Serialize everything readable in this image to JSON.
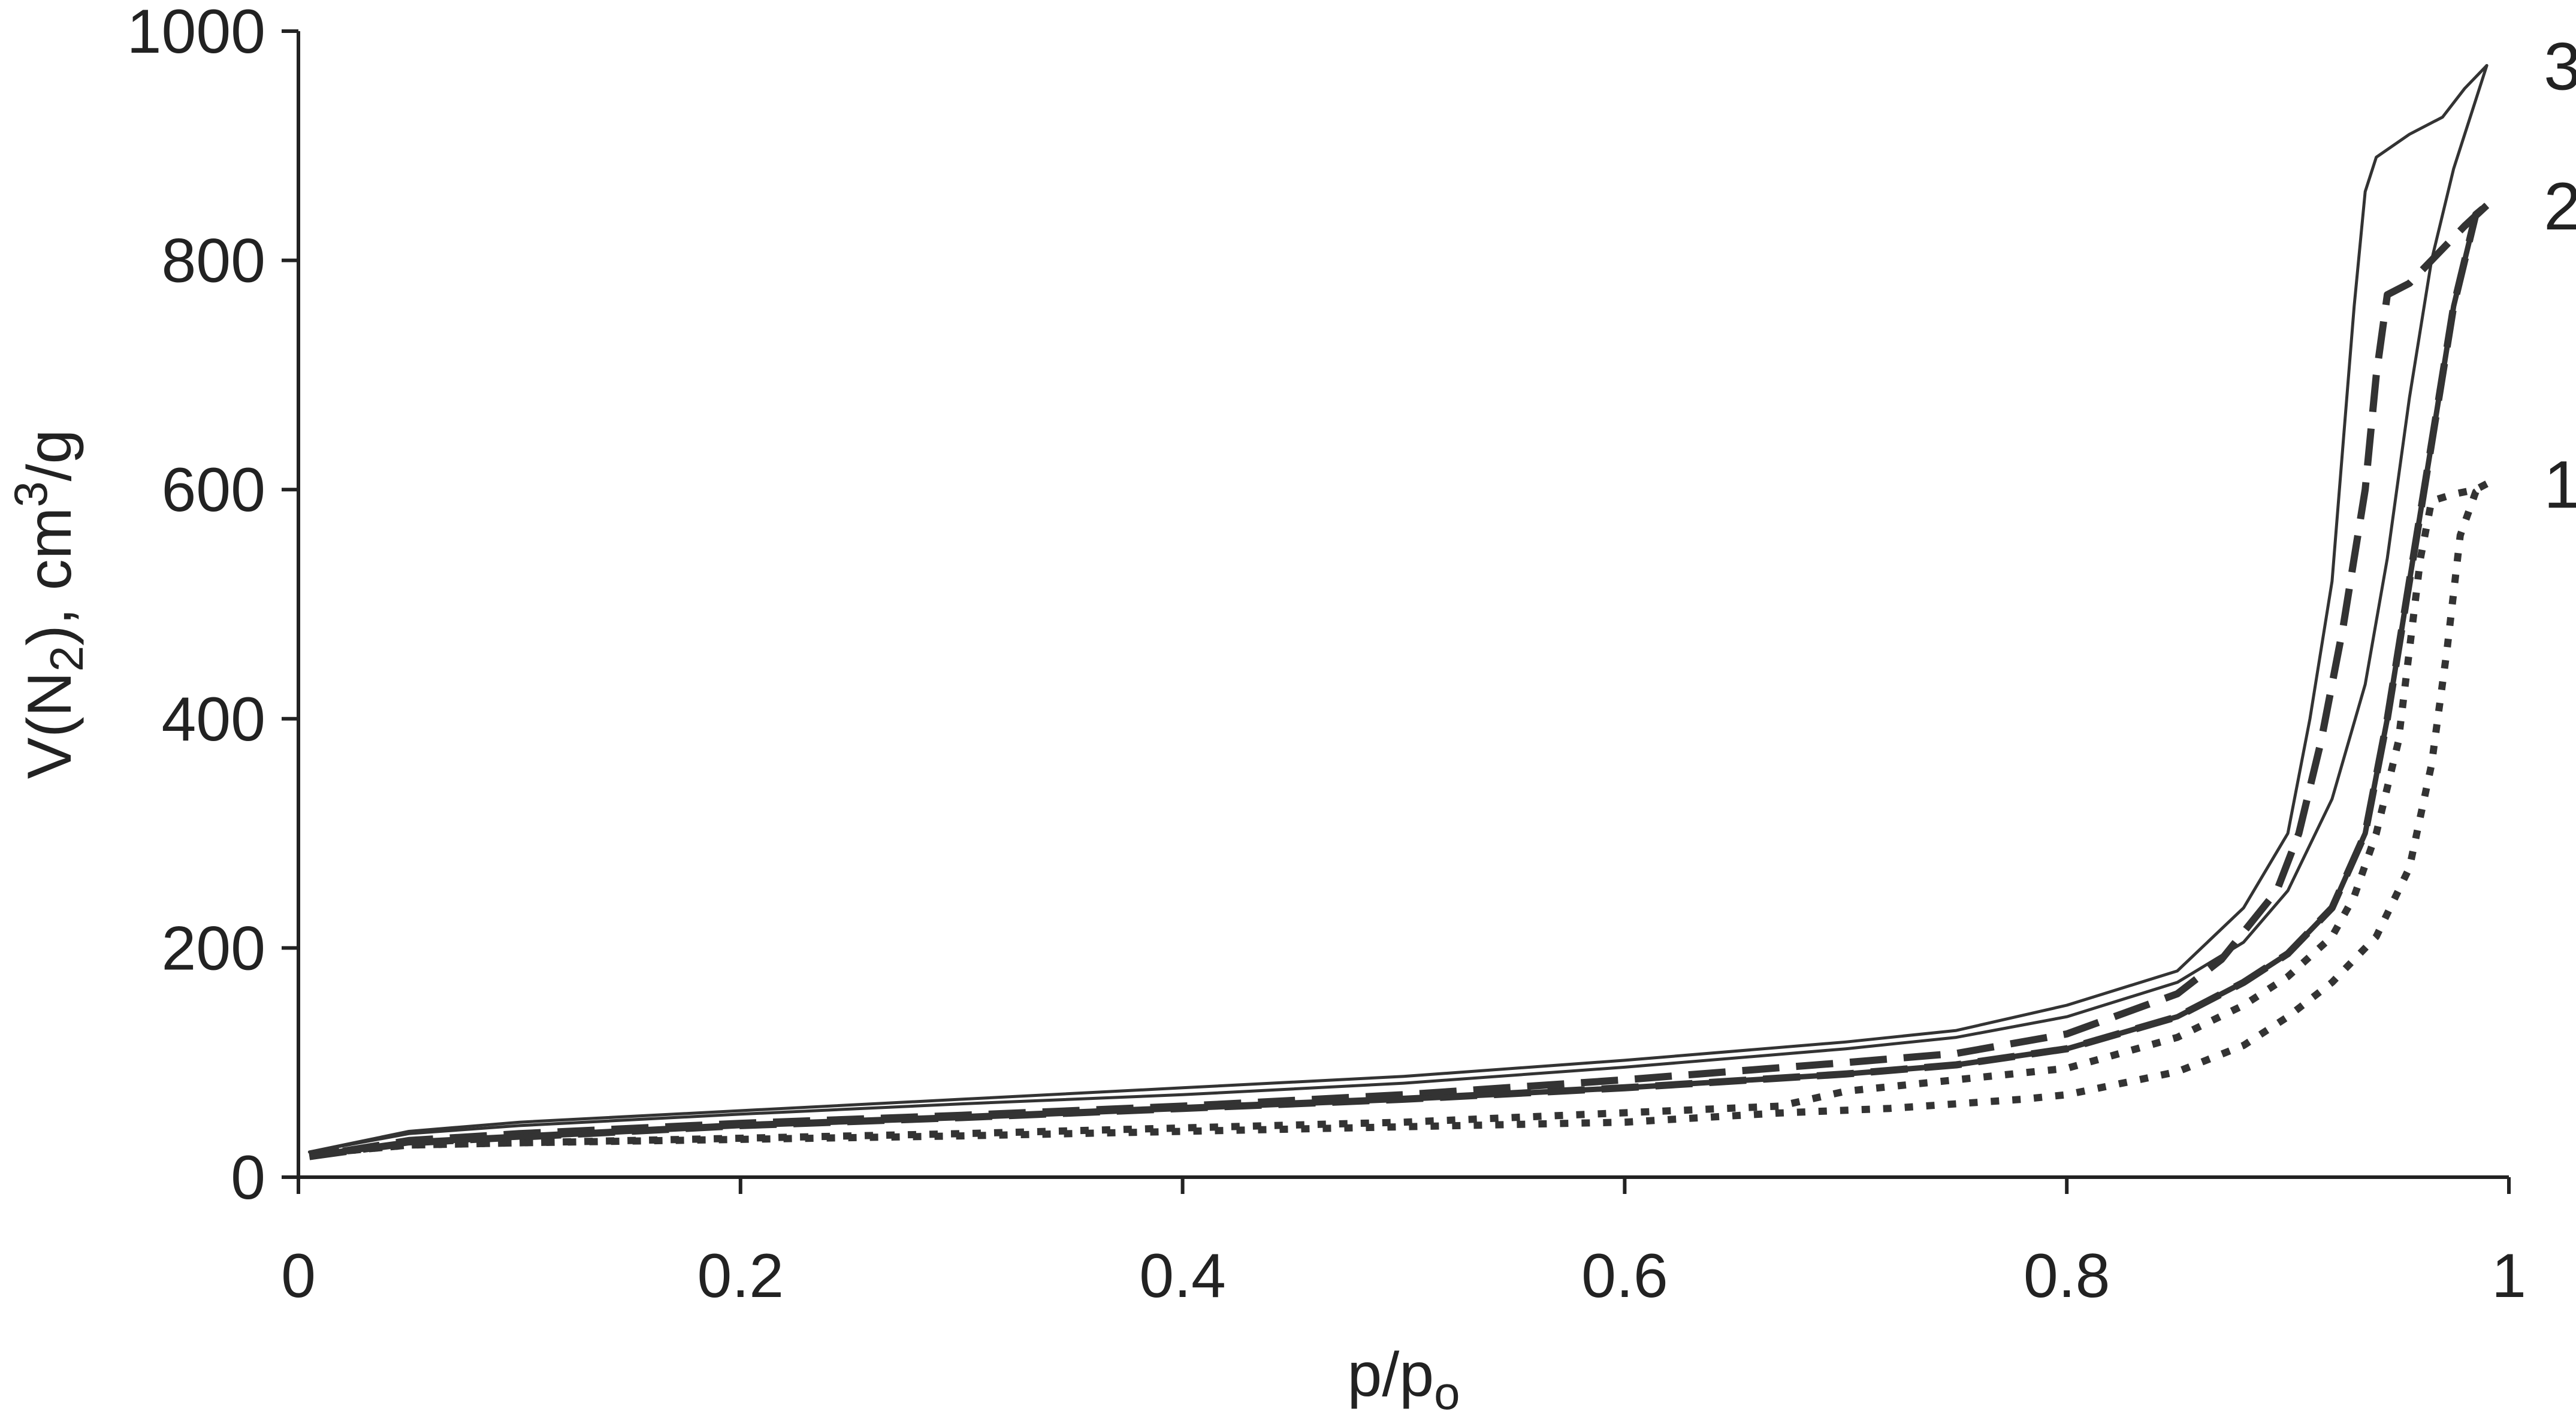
{
  "chart_data": {
    "type": "line",
    "title": "",
    "xlabel": {
      "base": "p/p",
      "sub": "o"
    },
    "ylabel": {
      "part1": "V(N",
      "sub": "2",
      "part2": "), cm",
      "sup": "3",
      "part3": "/g"
    },
    "xlim": [
      0,
      1
    ],
    "ylim": [
      0,
      1000
    ],
    "xticks": [
      0,
      0.2,
      0.4,
      0.6,
      0.8,
      1
    ],
    "xtick_labels": [
      "0",
      "0.2",
      "0.4",
      "0.6",
      "0.8",
      "1"
    ],
    "yticks": [
      0,
      200,
      400,
      600,
      800,
      1000
    ],
    "ytick_labels": [
      "0",
      "200",
      "400",
      "600",
      "800",
      "1000"
    ],
    "grid": false,
    "series": [
      {
        "name": "1",
        "style": "dotted",
        "adsorption": [
          [
            0.005,
            20
          ],
          [
            0.05,
            28
          ],
          [
            0.1,
            30
          ],
          [
            0.2,
            33
          ],
          [
            0.3,
            36
          ],
          [
            0.4,
            40
          ],
          [
            0.5,
            44
          ],
          [
            0.6,
            48
          ],
          [
            0.67,
            56
          ],
          [
            0.72,
            60
          ],
          [
            0.78,
            68
          ],
          [
            0.8,
            72
          ],
          [
            0.85,
            92
          ],
          [
            0.88,
            115
          ],
          [
            0.9,
            140
          ],
          [
            0.92,
            170
          ],
          [
            0.94,
            210
          ],
          [
            0.955,
            270
          ],
          [
            0.965,
            360
          ],
          [
            0.972,
            460
          ],
          [
            0.978,
            560
          ],
          [
            0.985,
            598
          ],
          [
            0.99,
            605
          ]
        ],
        "desorption": [
          [
            0.99,
            605
          ],
          [
            0.985,
            600
          ],
          [
            0.975,
            596
          ],
          [
            0.965,
            590
          ],
          [
            0.96,
            540
          ],
          [
            0.955,
            460
          ],
          [
            0.95,
            380
          ],
          [
            0.94,
            300
          ],
          [
            0.93,
            245
          ],
          [
            0.92,
            210
          ],
          [
            0.9,
            175
          ],
          [
            0.88,
            150
          ],
          [
            0.85,
            122
          ],
          [
            0.8,
            95
          ],
          [
            0.7,
            75
          ],
          [
            0.67,
            62
          ],
          [
            0.5,
            48
          ],
          [
            0.3,
            38
          ],
          [
            0.2,
            34
          ],
          [
            0.1,
            30
          ],
          [
            0.05,
            28
          ],
          [
            0.005,
            20
          ]
        ]
      },
      {
        "name": "2",
        "style": "dashed",
        "adsorption": [
          [
            0.005,
            18
          ],
          [
            0.05,
            30
          ],
          [
            0.1,
            35
          ],
          [
            0.2,
            45
          ],
          [
            0.3,
            52
          ],
          [
            0.4,
            60
          ],
          [
            0.5,
            68
          ],
          [
            0.6,
            78
          ],
          [
            0.7,
            90
          ],
          [
            0.75,
            98
          ],
          [
            0.8,
            112
          ],
          [
            0.85,
            140
          ],
          [
            0.88,
            170
          ],
          [
            0.9,
            195
          ],
          [
            0.92,
            235
          ],
          [
            0.935,
            300
          ],
          [
            0.945,
            400
          ],
          [
            0.955,
            520
          ],
          [
            0.965,
            640
          ],
          [
            0.975,
            760
          ],
          [
            0.985,
            840
          ],
          [
            0.99,
            848
          ]
        ],
        "desorption": [
          [
            0.99,
            848
          ],
          [
            0.98,
            830
          ],
          [
            0.97,
            810
          ],
          [
            0.955,
            780
          ],
          [
            0.945,
            770
          ],
          [
            0.94,
            700
          ],
          [
            0.935,
            600
          ],
          [
            0.925,
            480
          ],
          [
            0.915,
            380
          ],
          [
            0.905,
            300
          ],
          [
            0.895,
            250
          ],
          [
            0.87,
            190
          ],
          [
            0.85,
            160
          ],
          [
            0.8,
            125
          ],
          [
            0.75,
            108
          ],
          [
            0.7,
            100
          ],
          [
            0.6,
            85
          ],
          [
            0.5,
            72
          ],
          [
            0.4,
            62
          ],
          [
            0.3,
            54
          ],
          [
            0.2,
            47
          ],
          [
            0.1,
            38
          ],
          [
            0.05,
            32
          ],
          [
            0.005,
            18
          ]
        ]
      },
      {
        "name": "3",
        "style": "solid",
        "adsorption": [
          [
            0.005,
            22
          ],
          [
            0.05,
            38
          ],
          [
            0.1,
            45
          ],
          [
            0.2,
            55
          ],
          [
            0.3,
            64
          ],
          [
            0.4,
            72
          ],
          [
            0.5,
            82
          ],
          [
            0.6,
            96
          ],
          [
            0.7,
            112
          ],
          [
            0.75,
            122
          ],
          [
            0.8,
            140
          ],
          [
            0.85,
            170
          ],
          [
            0.88,
            205
          ],
          [
            0.9,
            250
          ],
          [
            0.92,
            330
          ],
          [
            0.935,
            430
          ],
          [
            0.945,
            540
          ],
          [
            0.955,
            680
          ],
          [
            0.965,
            800
          ],
          [
            0.975,
            880
          ],
          [
            0.985,
            940
          ],
          [
            0.99,
            970
          ]
        ],
        "desorption": [
          [
            0.99,
            970
          ],
          [
            0.98,
            950
          ],
          [
            0.97,
            925
          ],
          [
            0.955,
            910
          ],
          [
            0.94,
            890
          ],
          [
            0.935,
            860
          ],
          [
            0.93,
            760
          ],
          [
            0.925,
            640
          ],
          [
            0.92,
            520
          ],
          [
            0.91,
            400
          ],
          [
            0.9,
            300
          ],
          [
            0.88,
            235
          ],
          [
            0.85,
            180
          ],
          [
            0.8,
            150
          ],
          [
            0.75,
            128
          ],
          [
            0.7,
            118
          ],
          [
            0.6,
            102
          ],
          [
            0.5,
            88
          ],
          [
            0.4,
            78
          ],
          [
            0.3,
            68
          ],
          [
            0.2,
            58
          ],
          [
            0.1,
            48
          ],
          [
            0.05,
            40
          ],
          [
            0.005,
            22
          ]
        ]
      }
    ]
  }
}
